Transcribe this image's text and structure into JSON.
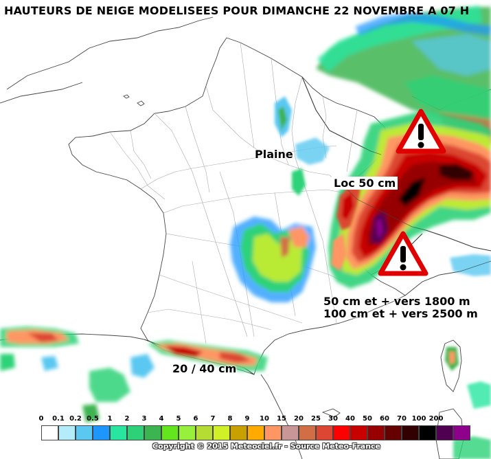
{
  "title": "HAUTEURS DE NEIGE MODELISEES POUR DIMANCHE 22 NOVEMBRE A 07 H",
  "annotations": {
    "plaine": "Plaine",
    "loc": "Loc 50 cm",
    "altitude_1": "50 cm et + vers 1800 m",
    "altitude_2": "100 cm et + vers 2500 m",
    "pyrenees": "20 / 40 cm"
  },
  "warning_icons": [
    "warning-triangle-icon",
    "warning-triangle-icon"
  ],
  "legend": {
    "labels": [
      "0",
      "0.1",
      "0.2",
      "0.5",
      "1",
      "2",
      "3",
      "4",
      "5",
      "6",
      "7",
      "8",
      "9",
      "10",
      "15",
      "20",
      "25",
      "30",
      "40",
      "50",
      "60",
      "70",
      "100",
      "200"
    ],
    "colors": [
      "#ffffff",
      "#b4ecfa",
      "#5ac8f0",
      "#1e96ff",
      "#28e6a0",
      "#2dd278",
      "#3cb450",
      "#64e61e",
      "#96f03c",
      "#b4dc32",
      "#d2f028",
      "#c8a000",
      "#ffaa00",
      "#ff9664",
      "#c89696",
      "#d26e46",
      "#dc4632",
      "#ff0000",
      "#c80000",
      "#960000",
      "#640000",
      "#320000",
      "#000000",
      "#500050",
      "#8c008c"
    ]
  },
  "copyright": "Copyright © 2015 Meteociel.fr - Source Meteo-France"
}
